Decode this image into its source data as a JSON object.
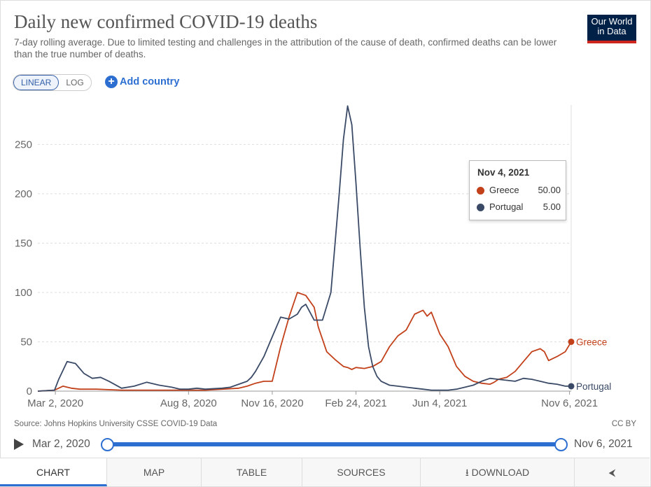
{
  "header": {
    "title": "Daily new confirmed COVID-19 deaths",
    "subtitle": "7-day rolling average. Due to limited testing and challenges in the attribution of the cause of death, confirmed deaths can be lower than the true number of deaths.",
    "logo_line1": "Our World",
    "logo_line2": "in Data"
  },
  "controls": {
    "linear_label": "LINEAR",
    "log_label": "LOG",
    "add_country_label": "Add country"
  },
  "tooltip": {
    "date": "Nov 4, 2021",
    "rows": [
      {
        "name": "Greece",
        "value": "50.00"
      },
      {
        "name": "Portugal",
        "value": "5.00"
      }
    ]
  },
  "colors": {
    "greece": "#c2401a",
    "portugal": "#3a4a66",
    "accent": "#2d6fd1"
  },
  "chart_data": {
    "type": "line",
    "title": "Daily new confirmed COVID-19 deaths",
    "xlabel": "",
    "ylabel": "",
    "x_tick_labels": [
      "Mar 2, 2020",
      "Aug 8, 2020",
      "Nov 16, 2020",
      "Feb 24, 2021",
      "Jun 4, 2021",
      "Nov 6, 2021"
    ],
    "x_tick_days": [
      21,
      180,
      280,
      380,
      480,
      635
    ],
    "y_ticks": [
      0,
      50,
      100,
      150,
      200,
      250
    ],
    "ylim": [
      0,
      290
    ],
    "xlim_days": [
      0,
      637
    ],
    "x_origin_date": "Feb 10, 2020",
    "series": [
      {
        "name": "Greece",
        "end_label": "Greece",
        "days": [
          0,
          20,
          30,
          40,
          50,
          70,
          100,
          130,
          160,
          180,
          200,
          220,
          240,
          250,
          260,
          270,
          280,
          290,
          300,
          310,
          320,
          330,
          335,
          345,
          355,
          365,
          370,
          375,
          380,
          390,
          400,
          410,
          420,
          430,
          440,
          450,
          460,
          465,
          470,
          480,
          490,
          500,
          510,
          520,
          530,
          540,
          545,
          550,
          560,
          570,
          580,
          590,
          600,
          605,
          610,
          620,
          630,
          637
        ],
        "values": [
          0,
          1,
          5,
          3,
          2,
          2,
          1,
          1,
          1,
          1,
          1,
          2,
          3,
          5,
          8,
          10,
          10,
          45,
          75,
          100,
          97,
          85,
          65,
          40,
          32,
          25,
          24,
          22,
          24,
          23,
          25,
          30,
          45,
          56,
          62,
          78,
          82,
          76,
          80,
          58,
          45,
          25,
          15,
          10,
          8,
          7,
          9,
          12,
          14,
          20,
          30,
          40,
          43,
          40,
          31,
          35,
          40,
          50
        ]
      },
      {
        "name": "Portugal",
        "end_label": "Portugal",
        "days": [
          0,
          20,
          25,
          35,
          45,
          55,
          65,
          75,
          85,
          100,
          115,
          130,
          145,
          160,
          170,
          180,
          190,
          200,
          220,
          230,
          240,
          250,
          255,
          260,
          270,
          280,
          290,
          300,
          310,
          315,
          320,
          325,
          330,
          340,
          350,
          355,
          360,
          365,
          370,
          375,
          380,
          385,
          390,
          395,
          400,
          405,
          410,
          420,
          430,
          440,
          450,
          460,
          470,
          480,
          490,
          500,
          510,
          520,
          530,
          540,
          550,
          560,
          570,
          580,
          590,
          600,
          610,
          620,
          630,
          637
        ],
        "values": [
          0,
          1,
          12,
          30,
          28,
          18,
          13,
          14,
          10,
          3,
          5,
          9,
          6,
          4,
          2,
          2,
          3,
          2,
          3,
          4,
          7,
          10,
          14,
          20,
          35,
          55,
          75,
          73,
          78,
          85,
          88,
          80,
          72,
          72,
          100,
          150,
          200,
          255,
          289,
          270,
          210,
          145,
          85,
          45,
          25,
          15,
          10,
          6,
          5,
          4,
          3,
          2,
          1,
          1,
          1,
          2,
          4,
          6,
          10,
          13,
          12,
          11,
          10,
          13,
          12,
          10,
          8,
          7,
          5,
          5
        ]
      }
    ]
  },
  "footer": {
    "source": "Source: Johns Hopkins University CSSE COVID-19 Data",
    "license": "CC BY",
    "timeline_start": "Mar 2, 2020",
    "timeline_end": "Nov 6, 2021",
    "timeline_start_fraction": 0,
    "timeline_end_fraction": 1
  },
  "tabs": [
    {
      "label": "CHART"
    },
    {
      "label": "MAP"
    },
    {
      "label": "TABLE"
    },
    {
      "label": "SOURCES"
    },
    {
      "label": "DOWNLOAD"
    }
  ]
}
